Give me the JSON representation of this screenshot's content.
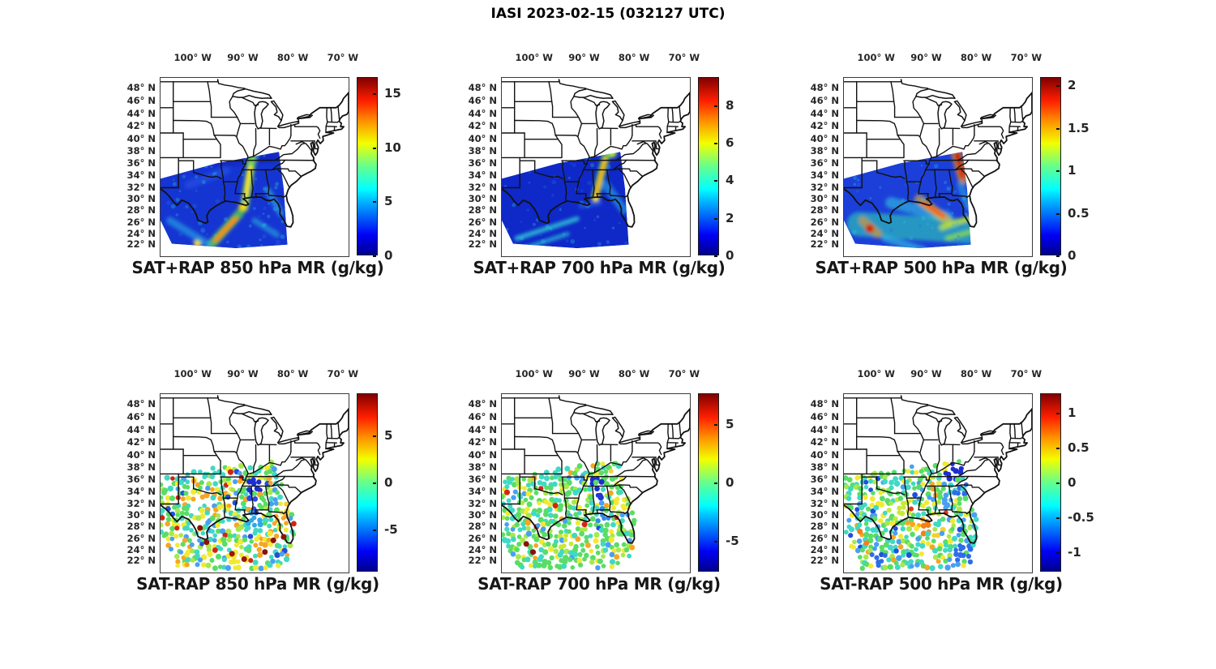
{
  "figure_title": "IASI 2023-02-15 (032127 UTC)",
  "units": "g/kg",
  "axes": {
    "lon_ticks": [
      "100° W",
      "90° W",
      "80° W",
      "70° W"
    ],
    "lon_values": [
      -100,
      -90,
      -80,
      -70
    ],
    "lat_ticks": [
      "48° N",
      "46° N",
      "44° N",
      "42° N",
      "40° N",
      "38° N",
      "36° N",
      "34° N",
      "32° N",
      "30° N",
      "28° N",
      "26° N",
      "24° N",
      "22° N"
    ],
    "lat_values": [
      48,
      46,
      44,
      42,
      40,
      38,
      36,
      34,
      32,
      30,
      28,
      26,
      24,
      22
    ],
    "map_extent": {
      "lon": [
        -106.6,
        -65.0
      ],
      "lat": [
        20.6,
        49.6
      ]
    }
  },
  "chart_data": [
    {
      "type": "heatmap",
      "kind": "swath",
      "title": "SAT+RAP 850 hPa MR (g/kg)",
      "colorbar": {
        "colormap": "jet",
        "ticks": [
          0,
          5,
          10,
          15
        ],
        "range": [
          0,
          16.5
        ]
      },
      "overlay": {
        "polygon": [
          [
            0,
            0.565
          ],
          [
            0.3,
            0.478
          ],
          [
            0.63,
            0.415
          ],
          [
            0.655,
            0.62
          ],
          [
            0.675,
            0.935
          ],
          [
            0.4,
            0.955
          ],
          [
            0.06,
            0.93
          ],
          [
            0,
            0.8
          ]
        ],
        "base": "#1535d2",
        "features": [
          {
            "x1": 0.3,
            "y1": 0.47,
            "x2": 0.6,
            "y2": 0.44,
            "w": 12,
            "c": "#0c1cb0",
            "o": 0.6
          },
          {
            "x1": 0.15,
            "y1": 0.6,
            "x2": 0.35,
            "y2": 0.52,
            "w": 10,
            "c": "#2a5ae8",
            "o": 0.5
          },
          {
            "x1": 0.487,
            "y1": 0.45,
            "x2": 0.445,
            "y2": 0.73,
            "w": 10,
            "c": "#7ae14c",
            "o": 0.9
          },
          {
            "x1": 0.478,
            "y1": 0.5,
            "x2": 0.448,
            "y2": 0.7,
            "w": 5,
            "c": "#ffe12e",
            "o": 1
          },
          {
            "x1": 0.436,
            "y1": 0.725,
            "x2": 0.436,
            "y2": 0.725,
            "w": 10,
            "c": "#ffd400",
            "o": 1
          },
          {
            "x1": 0.42,
            "y1": 0.76,
            "x2": 0.27,
            "y2": 0.935,
            "w": 11,
            "c": "#64d93c",
            "o": 0.75
          },
          {
            "x1": 0.4,
            "y1": 0.79,
            "x2": 0.293,
            "y2": 0.91,
            "w": 5.5,
            "c": "#ff8a00",
            "o": 1
          },
          {
            "x1": 0.198,
            "y1": 0.925,
            "x2": 0.198,
            "y2": 0.925,
            "w": 10,
            "c": "#ffe12e",
            "o": 1
          },
          {
            "x1": 0.05,
            "y1": 0.8,
            "x2": 0.25,
            "y2": 0.93,
            "w": 9,
            "c": "#28b4e8",
            "o": 0.55
          },
          {
            "x1": 0.5,
            "y1": 0.8,
            "x2": 0.62,
            "y2": 0.88,
            "w": 7,
            "c": "#2bc8dc",
            "o": 0.5
          },
          {
            "x1": 0.57,
            "y1": 0.63,
            "x2": 0.64,
            "y2": 0.76,
            "w": 8,
            "c": "#2fc0e8",
            "o": 0.55
          }
        ]
      }
    },
    {
      "type": "heatmap",
      "kind": "swath",
      "title": "SAT+RAP 700 hPa MR (g/kg)",
      "colorbar": {
        "colormap": "jet",
        "ticks": [
          0,
          2,
          4,
          6,
          8
        ],
        "range": [
          0,
          9.5
        ]
      },
      "overlay": {
        "polygon": [
          [
            0,
            0.565
          ],
          [
            0.3,
            0.478
          ],
          [
            0.63,
            0.415
          ],
          [
            0.655,
            0.62
          ],
          [
            0.675,
            0.935
          ],
          [
            0.4,
            0.955
          ],
          [
            0.06,
            0.93
          ],
          [
            0,
            0.8
          ]
        ],
        "base": "#0f28c8",
        "features": [
          {
            "x1": 0.585,
            "y1": 0.42,
            "x2": 0.585,
            "y2": 0.42,
            "w": 12,
            "c": "#b8e43c",
            "o": 1
          },
          {
            "x1": 0.553,
            "y1": 0.44,
            "x2": 0.497,
            "y2": 0.67,
            "w": 10,
            "c": "#58d948",
            "o": 0.8
          },
          {
            "x1": 0.55,
            "y1": 0.455,
            "x2": 0.5,
            "y2": 0.66,
            "w": 5,
            "c": "#ffb300",
            "o": 1
          },
          {
            "x1": 0.5,
            "y1": 0.68,
            "x2": 0.5,
            "y2": 0.68,
            "w": 8,
            "c": "#ffe12e",
            "o": 1
          },
          {
            "x1": 0.08,
            "y1": 0.9,
            "x2": 0.4,
            "y2": 0.79,
            "w": 6,
            "c": "#2fd0d8",
            "o": 0.8
          },
          {
            "x1": 0.12,
            "y1": 0.955,
            "x2": 0.35,
            "y2": 0.875,
            "w": 5,
            "c": "#2fd0d8",
            "o": 0.7
          },
          {
            "x1": 0.55,
            "y1": 0.6,
            "x2": 0.65,
            "y2": 0.74,
            "w": 11,
            "c": "#2aaae4",
            "o": 0.6
          },
          {
            "x1": 0.42,
            "y1": 0.72,
            "x2": 0.52,
            "y2": 0.7,
            "w": 6,
            "c": "#2a62e0",
            "o": 0.7
          }
        ]
      }
    },
    {
      "type": "heatmap",
      "kind": "swath",
      "title": "SAT+RAP 500 hPa MR (g/kg)",
      "colorbar": {
        "colormap": "jet",
        "ticks": [
          0,
          0.5,
          1,
          1.5,
          2
        ],
        "range": [
          0,
          2.1
        ]
      },
      "overlay": {
        "polygon": [
          [
            0,
            0.565
          ],
          [
            0.3,
            0.478
          ],
          [
            0.63,
            0.415
          ],
          [
            0.655,
            0.62
          ],
          [
            0.675,
            0.935
          ],
          [
            0.4,
            0.955
          ],
          [
            0.06,
            0.93
          ],
          [
            0,
            0.8
          ]
        ],
        "base": "#1b3fd8",
        "features": [
          {
            "x1": 0.08,
            "y1": 0.82,
            "x2": 0.66,
            "y2": 0.86,
            "w": 30,
            "c": "#2fd0b4",
            "o": 0.6
          },
          {
            "x1": 0.25,
            "y1": 0.7,
            "x2": 0.55,
            "y2": 0.78,
            "w": 14,
            "c": "#35cfe0",
            "o": 0.55
          },
          {
            "x1": 0.597,
            "y1": 0.42,
            "x2": 0.635,
            "y2": 0.57,
            "w": 13,
            "c": "#ff9a1e",
            "o": 0.65
          },
          {
            "x1": 0.603,
            "y1": 0.43,
            "x2": 0.613,
            "y2": 0.475,
            "w": 7,
            "c": "#c01408",
            "o": 1
          },
          {
            "x1": 0.617,
            "y1": 0.5,
            "x2": 0.63,
            "y2": 0.55,
            "w": 7,
            "c": "#d82c10",
            "o": 1
          },
          {
            "x1": 0.4,
            "y1": 0.68,
            "x2": 0.55,
            "y2": 0.8,
            "w": 12,
            "c": "#ffc21e",
            "o": 0.55
          },
          {
            "x1": 0.417,
            "y1": 0.7,
            "x2": 0.53,
            "y2": 0.775,
            "w": 6,
            "c": "#ff5a14",
            "o": 1
          },
          {
            "x1": 0.1,
            "y1": 0.8,
            "x2": 0.18,
            "y2": 0.875,
            "w": 11,
            "c": "#ff9a1e",
            "o": 0.55
          },
          {
            "x1": 0.137,
            "y1": 0.845,
            "x2": 0.137,
            "y2": 0.845,
            "w": 11,
            "c": "#d42410",
            "o": 1
          },
          {
            "x1": 0.52,
            "y1": 0.84,
            "x2": 0.66,
            "y2": 0.79,
            "w": 7,
            "c": "#bfe42e",
            "o": 0.85
          },
          {
            "x1": 0.55,
            "y1": 0.9,
            "x2": 0.68,
            "y2": 0.86,
            "w": 6,
            "c": "#8ce03c",
            "o": 0.8
          },
          {
            "x1": 0.22,
            "y1": 0.9,
            "x2": 0.42,
            "y2": 0.965,
            "w": 9,
            "c": "#35c8e0",
            "o": 0.6
          },
          {
            "x1": 0.62,
            "y1": 0.6,
            "x2": 0.66,
            "y2": 0.72,
            "w": 9,
            "c": "#2fb4e0",
            "o": 0.5
          }
        ]
      }
    },
    {
      "type": "scatter",
      "kind": "dots",
      "title": "SAT-RAP 850 hPa MR (g/kg)",
      "colorbar": {
        "colormap": "jet",
        "ticks": [
          -5,
          0,
          5
        ],
        "range": [
          -9.5,
          9.5
        ]
      },
      "overlay": {
        "region": [
          [
            0,
            0.47
          ],
          [
            0.28,
            0.415
          ],
          [
            0.62,
            0.375
          ],
          [
            0.66,
            0.55
          ],
          [
            0.72,
            0.74
          ],
          [
            0.67,
            0.96
          ],
          [
            0.46,
            1.0
          ],
          [
            0.1,
            0.995
          ],
          [
            0,
            0.8
          ]
        ],
        "palette": [
          [
            "#3fd9c4",
            0.22
          ],
          [
            "#59dd66",
            0.28
          ],
          [
            "#a8e84a",
            0.12
          ],
          [
            "#f2ea32",
            0.16
          ],
          [
            "#f5a623",
            0.08
          ],
          [
            "#49a0f2",
            0.08
          ],
          [
            "#2050dd",
            0.04
          ],
          [
            "#d42410",
            0.02
          ]
        ],
        "clusters": [
          {
            "fx": 0.12,
            "fy": 0.44,
            "r": 0.06,
            "c": "#3fd9c4"
          },
          {
            "fx": 0.28,
            "fy": 0.44,
            "r": 0.06,
            "c": "#3fd9c4"
          },
          {
            "fx": 0.505,
            "fy": 0.52,
            "r": 0.045,
            "c": "#1b2fd0"
          },
          {
            "fx": 0.49,
            "fy": 0.61,
            "r": 0.035,
            "c": "#2a4be0"
          },
          {
            "fx": 0.5,
            "fy": 0.7,
            "r": 0.045,
            "c": "#2fa8e8"
          },
          {
            "fx": 0.635,
            "fy": 0.7,
            "r": 0.045,
            "c": "#f5a623"
          },
          {
            "fx": 0.67,
            "fy": 0.645,
            "r": 0.035,
            "c": "#f2d22e"
          },
          {
            "fx": 0.42,
            "fy": 0.92,
            "r": 0.06,
            "c": "#f2ea32"
          },
          {
            "fx": 0.52,
            "fy": 0.875,
            "r": 0.04,
            "c": "#f5a623"
          }
        ],
        "special_dots": [
          {
            "fx": 0.21,
            "fy": 0.75,
            "c": "#8c1208"
          },
          {
            "fx": 0.245,
            "fy": 0.83,
            "c": "#8c1208"
          },
          {
            "fx": 0.6,
            "fy": 0.82,
            "c": "#8c1208"
          },
          {
            "fx": 0.555,
            "fy": 0.885,
            "c": "#8c1208"
          },
          {
            "fx": 0.655,
            "fy": 0.8,
            "c": "#8c1208"
          },
          {
            "fx": 0.445,
            "fy": 0.925,
            "c": "#a01408"
          },
          {
            "fx": 0.38,
            "fy": 0.895,
            "c": "#a01408"
          }
        ]
      }
    },
    {
      "type": "scatter",
      "kind": "dots",
      "title": "SAT-RAP 700 hPa MR (g/kg)",
      "colorbar": {
        "colormap": "jet",
        "ticks": [
          -5,
          0,
          5
        ],
        "range": [
          -7.6,
          7.6
        ]
      },
      "overlay": {
        "region": [
          [
            0,
            0.47
          ],
          [
            0.28,
            0.415
          ],
          [
            0.62,
            0.375
          ],
          [
            0.66,
            0.55
          ],
          [
            0.72,
            0.74
          ],
          [
            0.67,
            0.96
          ],
          [
            0.46,
            1.0
          ],
          [
            0.1,
            0.995
          ],
          [
            0,
            0.8
          ]
        ],
        "palette": [
          [
            "#59dd66",
            0.42
          ],
          [
            "#3fd9c4",
            0.22
          ],
          [
            "#a8e84a",
            0.12
          ],
          [
            "#f2ea32",
            0.12
          ],
          [
            "#f5a623",
            0.04
          ],
          [
            "#49a0f2",
            0.05
          ],
          [
            "#2050dd",
            0.01
          ],
          [
            "#d42410",
            0.02
          ]
        ],
        "clusters": [
          {
            "fx": 0.25,
            "fy": 0.44,
            "r": 0.07,
            "c": "#3fd9c4"
          },
          {
            "fx": 0.505,
            "fy": 0.5,
            "r": 0.035,
            "c": "#1b2fd0"
          },
          {
            "fx": 0.515,
            "fy": 0.58,
            "r": 0.035,
            "c": "#2038d6"
          },
          {
            "fx": 0.53,
            "fy": 0.68,
            "r": 0.04,
            "c": "#2f8ce8"
          },
          {
            "fx": 0.6,
            "fy": 0.46,
            "r": 0.04,
            "c": "#f2d22e"
          },
          {
            "fx": 0.63,
            "fy": 0.62,
            "r": 0.04,
            "c": "#f2ea32"
          },
          {
            "fx": 0.35,
            "fy": 0.82,
            "r": 0.05,
            "c": "#c9e838"
          }
        ],
        "special_dots": [
          {
            "fx": 0.285,
            "fy": 0.625,
            "c": "#d42410"
          },
          {
            "fx": 0.44,
            "fy": 0.73,
            "c": "#d42410"
          },
          {
            "fx": 0.13,
            "fy": 0.84,
            "c": "#8c1208"
          },
          {
            "fx": 0.165,
            "fy": 0.885,
            "c": "#8c1208"
          }
        ]
      }
    },
    {
      "type": "scatter",
      "kind": "dots",
      "title": "SAT-RAP 500 hPa MR (g/kg)",
      "colorbar": {
        "colormap": "jet",
        "ticks": [
          -1,
          -0.5,
          0,
          0.5,
          1
        ],
        "range": [
          -1.28,
          1.28
        ]
      },
      "overlay": {
        "region": [
          [
            0,
            0.47
          ],
          [
            0.28,
            0.415
          ],
          [
            0.62,
            0.375
          ],
          [
            0.66,
            0.55
          ],
          [
            0.72,
            0.74
          ],
          [
            0.67,
            0.96
          ],
          [
            0.46,
            1.0
          ],
          [
            0.1,
            0.995
          ],
          [
            0,
            0.8
          ]
        ],
        "palette": [
          [
            "#59dd66",
            0.3
          ],
          [
            "#3fd9c4",
            0.26
          ],
          [
            "#a8e84a",
            0.12
          ],
          [
            "#f2ea32",
            0.12
          ],
          [
            "#49a0f2",
            0.1
          ],
          [
            "#2050dd",
            0.05
          ],
          [
            "#f5a623",
            0.04
          ],
          [
            "#e03c14",
            0.01
          ]
        ],
        "clusters": [
          {
            "fx": 0.585,
            "fy": 0.44,
            "r": 0.05,
            "c": "#1b2fd0"
          },
          {
            "fx": 0.62,
            "fy": 0.53,
            "r": 0.045,
            "c": "#2f6ce8"
          },
          {
            "fx": 0.55,
            "fy": 0.6,
            "r": 0.04,
            "c": "#49a0f2"
          },
          {
            "fx": 0.45,
            "fy": 0.745,
            "r": 0.045,
            "c": "#f57f17"
          },
          {
            "fx": 0.4,
            "fy": 0.71,
            "r": 0.035,
            "c": "#ffb300"
          },
          {
            "fx": 0.5,
            "fy": 0.78,
            "r": 0.035,
            "c": "#f2d22e"
          },
          {
            "fx": 0.65,
            "fy": 0.9,
            "r": 0.06,
            "c": "#2f6ce8"
          },
          {
            "fx": 0.58,
            "fy": 0.97,
            "r": 0.05,
            "c": "#49a0f2"
          },
          {
            "fx": 0.18,
            "fy": 0.93,
            "r": 0.05,
            "c": "#2f6ce8"
          },
          {
            "fx": 0.3,
            "fy": 0.65,
            "r": 0.06,
            "c": "#c9e838"
          }
        ],
        "special_dots": [
          {
            "fx": 0.085,
            "fy": 0.77,
            "c": "#f57f17"
          },
          {
            "fx": 0.12,
            "fy": 0.835,
            "c": "#f57f17"
          }
        ]
      }
    }
  ]
}
